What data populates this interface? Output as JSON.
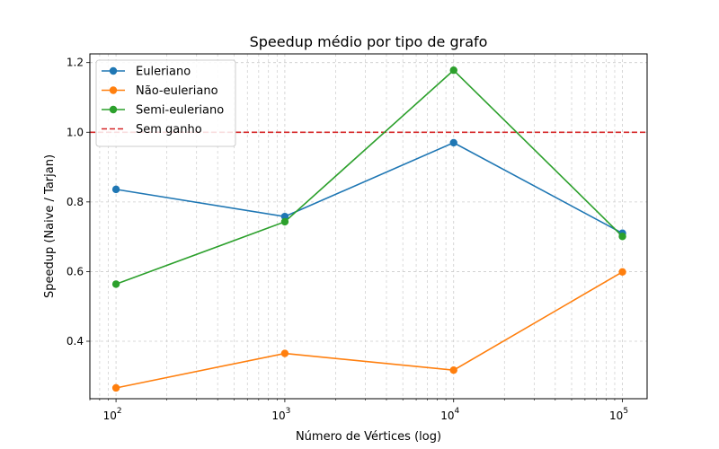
{
  "chart_data": {
    "type": "line",
    "title": "Speedup médio por tipo de grafo",
    "xlabel": "Número de Vértices (log)",
    "ylabel": "Speedup (Naive / Tarjan)",
    "xscale": "log",
    "x": [
      100,
      1000,
      10000,
      100000
    ],
    "xlim": [
      70,
      140000
    ],
    "ylim": [
      0.235,
      1.225
    ],
    "x_tick_labels": [
      {
        "base": "10",
        "exp": "2"
      },
      {
        "base": "10",
        "exp": "3"
      },
      {
        "base": "10",
        "exp": "4"
      },
      {
        "base": "10",
        "exp": "5"
      }
    ],
    "y_ticks": [
      0.4,
      0.6,
      0.8,
      1.0,
      1.2
    ],
    "y_tick_labels": [
      "0.4",
      "0.6",
      "0.8",
      "1.0",
      "1.2"
    ],
    "grid": true,
    "legend_position": "top-left",
    "series": [
      {
        "name": "Euleriano",
        "color": "#1f77b4",
        "marker": "circle",
        "values": [
          0.836,
          0.758,
          0.97,
          0.71
        ]
      },
      {
        "name": "Não-euleriano",
        "color": "#ff7f0e",
        "marker": "circle",
        "values": [
          0.266,
          0.365,
          0.317,
          0.599
        ]
      },
      {
        "name": "Semi-euleriano",
        "color": "#2ca02c",
        "marker": "circle",
        "values": [
          0.564,
          0.743,
          1.178,
          0.701
        ]
      }
    ],
    "reference_lines": [
      {
        "name": "Sem ganho",
        "y": 1.0,
        "color": "#d62728",
        "style": "dashed"
      }
    ]
  }
}
